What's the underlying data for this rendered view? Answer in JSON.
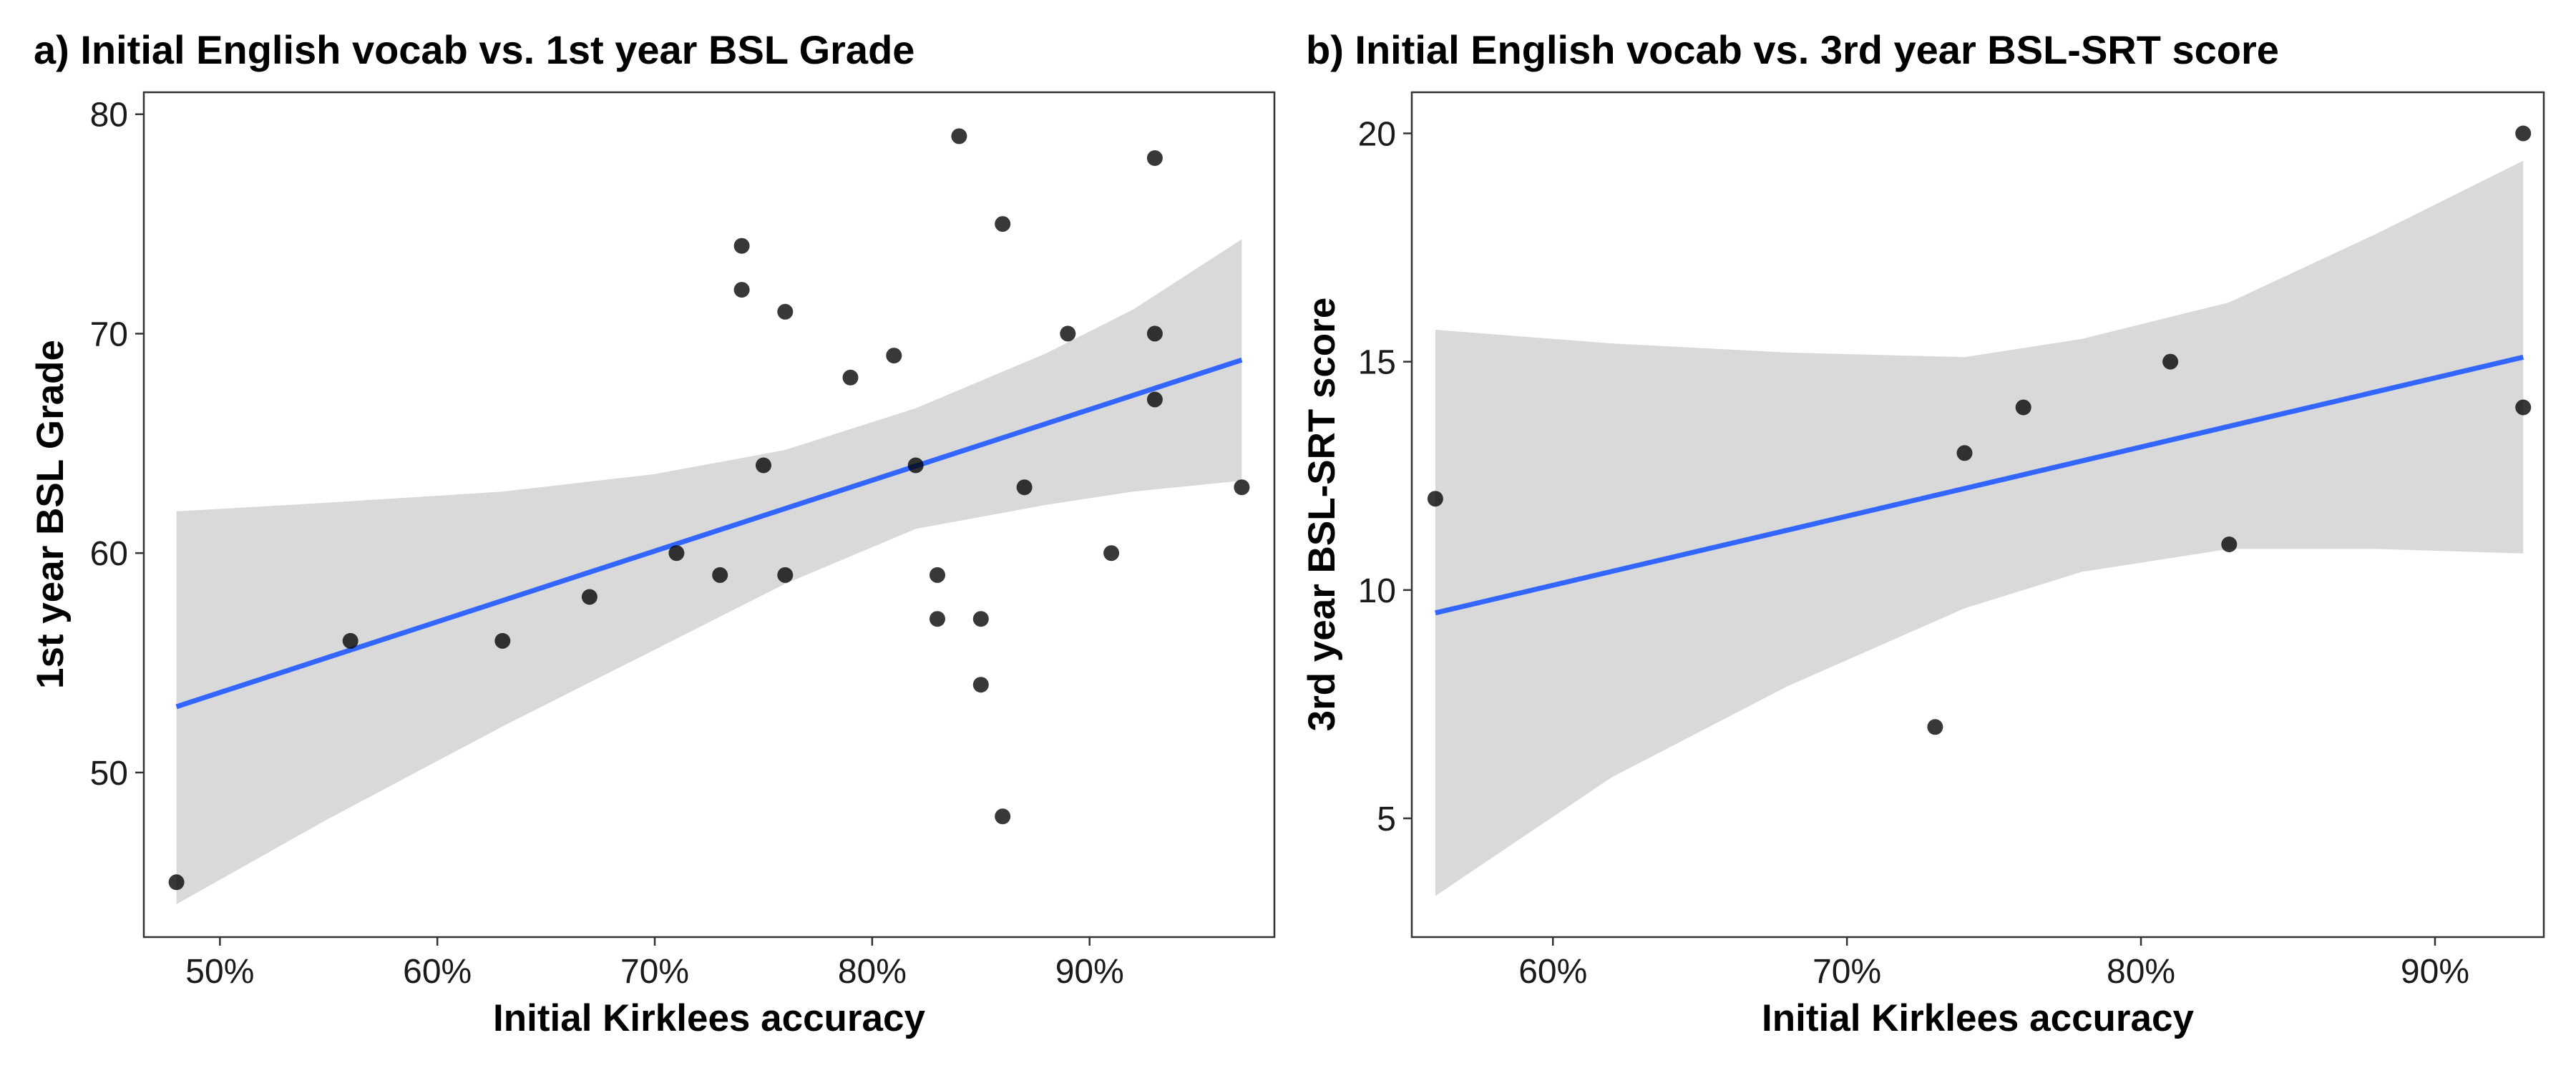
{
  "chart_data": [
    {
      "type": "scatter",
      "title": "a) Initial English vocab vs. 1st year BSL Grade",
      "xlabel": "Initial Kirklees accuracy",
      "ylabel": "1st year BSL Grade",
      "xlim": [
        0.465,
        0.985
      ],
      "ylim": [
        42.5,
        81
      ],
      "xticks": [
        {
          "value": 0.5,
          "label": "50%"
        },
        {
          "value": 0.6,
          "label": "60%"
        },
        {
          "value": 0.7,
          "label": "70%"
        },
        {
          "value": 0.8,
          "label": "80%"
        },
        {
          "value": 0.9,
          "label": "90%"
        }
      ],
      "yticks": [
        {
          "value": 50,
          "label": "50"
        },
        {
          "value": 60,
          "label": "60"
        },
        {
          "value": 70,
          "label": "70"
        },
        {
          "value": 80,
          "label": "80"
        }
      ],
      "grid": false,
      "points": [
        {
          "x": 0.48,
          "y": 45
        },
        {
          "x": 0.56,
          "y": 56
        },
        {
          "x": 0.63,
          "y": 56
        },
        {
          "x": 0.67,
          "y": 58
        },
        {
          "x": 0.71,
          "y": 60
        },
        {
          "x": 0.73,
          "y": 59
        },
        {
          "x": 0.74,
          "y": 74
        },
        {
          "x": 0.74,
          "y": 72
        },
        {
          "x": 0.75,
          "y": 64
        },
        {
          "x": 0.76,
          "y": 71
        },
        {
          "x": 0.76,
          "y": 59
        },
        {
          "x": 0.79,
          "y": 68
        },
        {
          "x": 0.81,
          "y": 69
        },
        {
          "x": 0.82,
          "y": 64
        },
        {
          "x": 0.83,
          "y": 59
        },
        {
          "x": 0.83,
          "y": 57
        },
        {
          "x": 0.84,
          "y": 79
        },
        {
          "x": 0.85,
          "y": 57
        },
        {
          "x": 0.85,
          "y": 54
        },
        {
          "x": 0.86,
          "y": 75
        },
        {
          "x": 0.86,
          "y": 48
        },
        {
          "x": 0.87,
          "y": 63
        },
        {
          "x": 0.89,
          "y": 70
        },
        {
          "x": 0.91,
          "y": 60
        },
        {
          "x": 0.93,
          "y": 78
        },
        {
          "x": 0.93,
          "y": 70
        },
        {
          "x": 0.93,
          "y": 67
        },
        {
          "x": 0.97,
          "y": 63
        }
      ],
      "fit_line": {
        "x": [
          0.48,
          0.97
        ],
        "y": [
          53,
          68.8
        ],
        "color": "#3366FF"
      },
      "confidence_band": {
        "x": [
          0.48,
          0.55,
          0.63,
          0.7,
          0.76,
          0.82,
          0.88,
          0.92,
          0.97
        ],
        "upper": [
          61.9,
          62.3,
          62.8,
          63.6,
          64.7,
          66.6,
          69.1,
          71.1,
          74.3
        ],
        "lower": [
          44.0,
          47.9,
          52.1,
          55.6,
          58.6,
          61.1,
          62.2,
          62.8,
          63.3
        ],
        "color": "#d9d9d9"
      }
    },
    {
      "type": "scatter",
      "title": "b) Initial English vocab vs. 3rd year BSL-SRT score",
      "xlabel": "Initial Kirklees accuracy",
      "ylabel": "3rd year BSL-SRT score",
      "xlim": [
        0.552,
        0.937
      ],
      "ylim": [
        2.4,
        20.9
      ],
      "xticks": [
        {
          "value": 0.6,
          "label": "60%"
        },
        {
          "value": 0.7,
          "label": "70%"
        },
        {
          "value": 0.8,
          "label": "80%"
        },
        {
          "value": 0.9,
          "label": "90%"
        }
      ],
      "yticks": [
        {
          "value": 5,
          "label": "5"
        },
        {
          "value": 10,
          "label": "10"
        },
        {
          "value": 15,
          "label": "15"
        },
        {
          "value": 20,
          "label": "20"
        }
      ],
      "grid": false,
      "points": [
        {
          "x": 0.56,
          "y": 12
        },
        {
          "x": 0.73,
          "y": 7
        },
        {
          "x": 0.74,
          "y": 13
        },
        {
          "x": 0.76,
          "y": 14
        },
        {
          "x": 0.81,
          "y": 15
        },
        {
          "x": 0.83,
          "y": 11
        },
        {
          "x": 0.93,
          "y": 20
        },
        {
          "x": 0.93,
          "y": 14
        }
      ],
      "fit_line": {
        "x": [
          0.56,
          0.93
        ],
        "y": [
          9.5,
          15.1
        ],
        "color": "#3366FF"
      },
      "confidence_band": {
        "x": [
          0.56,
          0.62,
          0.68,
          0.74,
          0.78,
          0.83,
          0.88,
          0.93
        ],
        "upper": [
          15.7,
          15.4,
          15.2,
          15.1,
          15.5,
          16.3,
          17.8,
          19.4
        ],
        "lower": [
          3.3,
          5.9,
          7.9,
          9.6,
          10.4,
          10.9,
          10.9,
          10.8
        ],
        "color": "#d9d9d9"
      }
    }
  ]
}
